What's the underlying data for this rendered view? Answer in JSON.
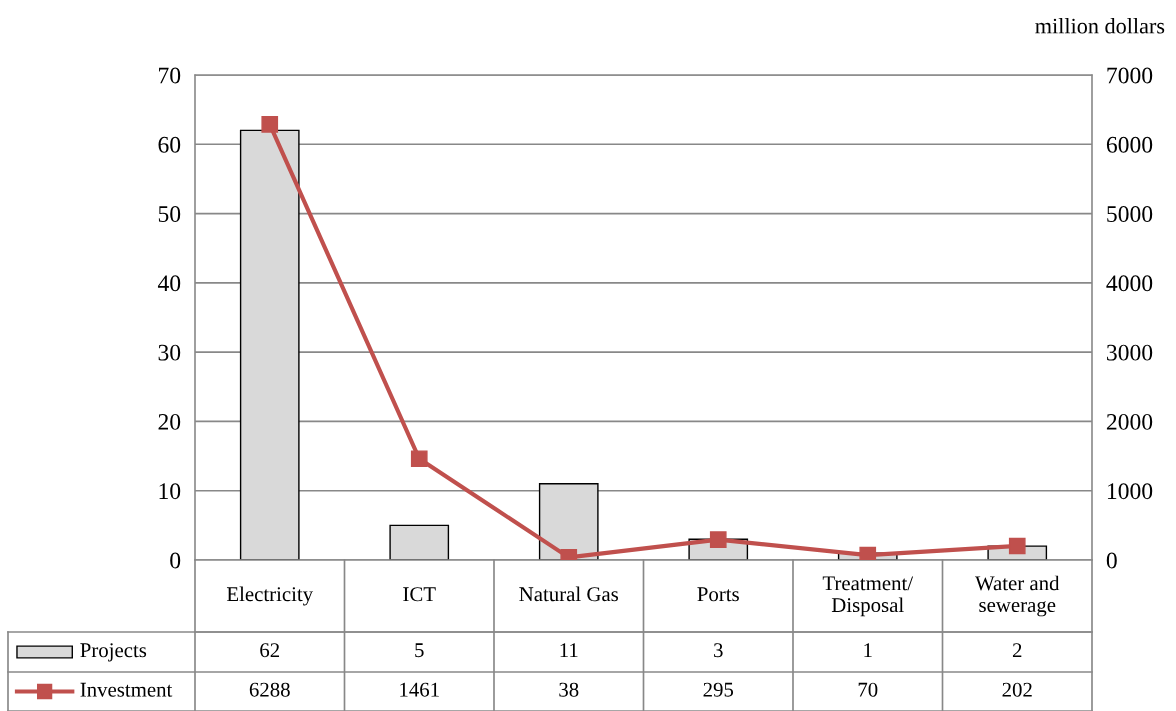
{
  "chart_data": {
    "type": "bar",
    "y2label": "million dollars",
    "categories": [
      "Electricity",
      "ICT",
      "Natural Gas",
      "Ports",
      "Treatment/\nDisposal",
      "Water and\nsewerage"
    ],
    "series": [
      {
        "name": "Projects",
        "color": "#d9d9d9",
        "values": [
          62,
          5,
          11,
          3,
          1,
          2
        ]
      },
      {
        "name": "Investment",
        "type": "line",
        "axis": "y2",
        "color": "#c0504d",
        "marker": "square",
        "values": [
          6288,
          1461,
          38,
          295,
          70,
          202
        ]
      }
    ],
    "ylim": [
      0,
      70
    ],
    "yticks": [
      0,
      10,
      20,
      30,
      40,
      50,
      60,
      70
    ],
    "y2lim": [
      0,
      7000
    ],
    "y2ticks": [
      0,
      1000,
      2000,
      3000,
      4000,
      5000,
      6000,
      7000
    ],
    "grid": "y",
    "data_labels": true,
    "legend": "bottom"
  }
}
